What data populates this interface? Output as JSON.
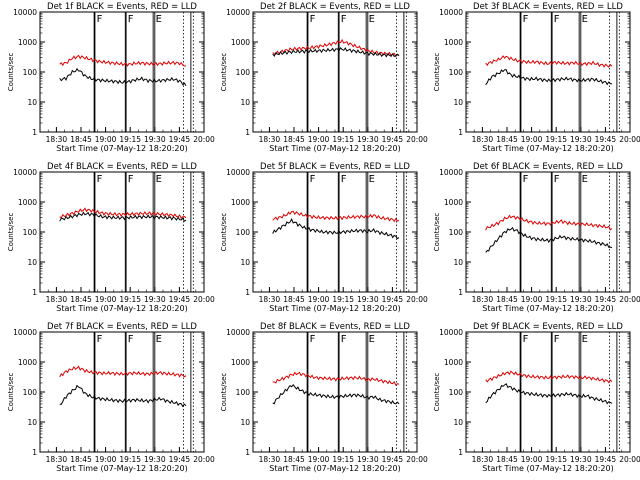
{
  "chart_data": [
    {
      "type": "line",
      "title": "Det 1f BLACK = Events, RED = LLD",
      "ylabel": "Counts/sec",
      "xlabel": "Start Time (07-May-12 18:20:20)",
      "x_ticks": [
        "18:30",
        "18:45",
        "19:00",
        "19:15",
        "19:30",
        "19:45",
        "20:00"
      ],
      "y_ticks": [
        "1",
        "10",
        "100",
        "1000",
        "10000"
      ],
      "yscale": "log",
      "ylim": [
        1,
        10000
      ],
      "x_range": [
        "18:20",
        "20:00"
      ],
      "series": [
        {
          "color": "#e00000",
          "values": [
            180,
            200,
            290,
            330,
            300,
            260,
            230,
            215,
            205,
            195,
            185,
            180,
            195,
            200,
            190,
            185,
            190,
            200,
            205,
            195,
            160
          ]
        },
        {
          "color": "#000000",
          "values": [
            55,
            62,
            100,
            120,
            75,
            60,
            55,
            52,
            50,
            48,
            45,
            48,
            55,
            60,
            52,
            50,
            52,
            55,
            58,
            50,
            35
          ]
        }
      ],
      "annotations": [
        "F",
        "F",
        "E"
      ]
    },
    {
      "type": "line",
      "title": "Det 2f BLACK = Events, RED = LLD",
      "ylabel": "Counts/sec",
      "xlabel": "Start Time (07-May-12 18:20:20)",
      "x_ticks": [
        "18:30",
        "18:45",
        "19:00",
        "19:15",
        "19:30",
        "19:45",
        "20:00"
      ],
      "y_ticks": [
        "1",
        "10",
        "100",
        "1000",
        "10000"
      ],
      "yscale": "log",
      "ylim": [
        1,
        10000
      ],
      "x_range": [
        "18:20",
        "20:00"
      ],
      "series": [
        {
          "color": "#e00000",
          "values": [
            400,
            450,
            520,
            580,
            600,
            620,
            650,
            700,
            760,
            840,
            950,
            1050,
            900,
            750,
            620,
            520,
            460,
            430,
            410,
            390,
            360
          ]
        },
        {
          "color": "#000000",
          "values": [
            380,
            410,
            440,
            470,
            480,
            490,
            500,
            510,
            520,
            540,
            560,
            580,
            540,
            500,
            460,
            420,
            400,
            380,
            370,
            360,
            350
          ]
        }
      ],
      "annotations": [
        "F",
        "F",
        "E"
      ]
    },
    {
      "type": "line",
      "title": "Det 3f BLACK = Events, RED = LLD",
      "ylabel": "Counts/sec",
      "xlabel": "Start Time (07-May-12 18:20:20)",
      "x_ticks": [
        "18:30",
        "18:45",
        "19:00",
        "19:15",
        "19:30",
        "19:45",
        "20:00"
      ],
      "y_ticks": [
        "1",
        "10",
        "100",
        "1000",
        "10000"
      ],
      "yscale": "log",
      "ylim": [
        1,
        10000
      ],
      "x_range": [
        "18:20",
        "20:00"
      ],
      "series": [
        {
          "color": "#e00000",
          "values": [
            180,
            220,
            260,
            330,
            280,
            240,
            225,
            210,
            220,
            200,
            190,
            210,
            200,
            195,
            205,
            185,
            190,
            200,
            175,
            165,
            155
          ]
        },
        {
          "color": "#000000",
          "values": [
            40,
            70,
            90,
            120,
            80,
            70,
            62,
            58,
            60,
            55,
            52,
            55,
            58,
            60,
            55,
            52,
            55,
            58,
            50,
            45,
            40
          ]
        }
      ],
      "annotations": [
        "F",
        "F",
        "E"
      ]
    },
    {
      "type": "line",
      "title": "Det 4f BLACK = Events, RED = LLD",
      "ylabel": "Counts/sec",
      "xlabel": "Start Time (07-May-12 18:20:20)",
      "x_ticks": [
        "18:30",
        "18:45",
        "19:00",
        "19:15",
        "19:30",
        "19:45",
        "20:00"
      ],
      "y_ticks": [
        "1",
        "10",
        "100",
        "1000",
        "10000"
      ],
      "yscale": "log",
      "ylim": [
        1,
        10000
      ],
      "x_range": [
        "18:20",
        "20:00"
      ],
      "series": [
        {
          "color": "#e00000",
          "values": [
            320,
            360,
            420,
            500,
            560,
            520,
            460,
            420,
            400,
            390,
            385,
            395,
            405,
            415,
            420,
            410,
            395,
            380,
            360,
            330,
            300
          ]
        },
        {
          "color": "#000000",
          "values": [
            260,
            290,
            330,
            380,
            410,
            390,
            350,
            320,
            310,
            300,
            298,
            305,
            315,
            320,
            325,
            318,
            310,
            300,
            290,
            270,
            250
          ]
        }
      ],
      "annotations": [
        "F",
        "F",
        "E"
      ]
    },
    {
      "type": "line",
      "title": "Det 5f BLACK = Events, RED = LLD",
      "ylabel": "Counts/sec",
      "xlabel": "Start Time (07-May-12 18:20:20)",
      "x_ticks": [
        "18:30",
        "18:45",
        "19:00",
        "19:15",
        "19:30",
        "19:45",
        "20:00"
      ],
      "y_ticks": [
        "1",
        "10",
        "100",
        "1000",
        "10000"
      ],
      "yscale": "log",
      "ylim": [
        1,
        10000
      ],
      "x_range": [
        "18:20",
        "20:00"
      ],
      "series": [
        {
          "color": "#e00000",
          "values": [
            270,
            300,
            360,
            470,
            420,
            360,
            330,
            310,
            300,
            295,
            290,
            300,
            310,
            320,
            330,
            320,
            360,
            300,
            280,
            260,
            240
          ]
        },
        {
          "color": "#000000",
          "values": [
            95,
            130,
            180,
            240,
            180,
            140,
            120,
            110,
            100,
            98,
            95,
            100,
            105,
            110,
            112,
            105,
            115,
            95,
            85,
            75,
            65
          ]
        }
      ],
      "annotations": [
        "F",
        "F",
        "E"
      ]
    },
    {
      "type": "line",
      "title": "Det 6f BLACK = Events, RED = LLD",
      "ylabel": "Counts/sec",
      "xlabel": "Start Time (07-May-12 18:20:20)",
      "x_ticks": [
        "18:30",
        "18:45",
        "19:00",
        "19:15",
        "19:30",
        "19:45",
        "20:00"
      ],
      "y_ticks": [
        "1",
        "10",
        "100",
        "1000",
        "10000"
      ],
      "yscale": "log",
      "ylim": [
        1,
        10000
      ],
      "x_range": [
        "18:20",
        "20:00"
      ],
      "series": [
        {
          "color": "#e00000",
          "values": [
            130,
            160,
            200,
            280,
            330,
            300,
            250,
            220,
            200,
            195,
            190,
            210,
            230,
            200,
            190,
            185,
            180,
            170,
            160,
            150,
            130
          ]
        },
        {
          "color": "#000000",
          "values": [
            20,
            35,
            60,
            100,
            130,
            110,
            80,
            65,
            58,
            55,
            52,
            60,
            70,
            62,
            58,
            55,
            52,
            48,
            42,
            38,
            30
          ]
        }
      ],
      "annotations": [
        "F",
        "F",
        "E"
      ]
    },
    {
      "type": "line",
      "title": "Det 7f BLACK = Events, RED = LLD",
      "ylabel": "Counts/sec",
      "xlabel": "Start Time (07-May-12 18:20:20)",
      "x_ticks": [
        "18:30",
        "18:45",
        "19:00",
        "19:15",
        "19:30",
        "19:45",
        "20:00"
      ],
      "y_ticks": [
        "1",
        "10",
        "100",
        "1000",
        "10000"
      ],
      "yscale": "log",
      "ylim": [
        1,
        10000
      ],
      "x_range": [
        "18:20",
        "20:00"
      ],
      "series": [
        {
          "color": "#e00000",
          "values": [
            330,
            480,
            600,
            650,
            520,
            460,
            440,
            420,
            430,
            410,
            400,
            420,
            430,
            410,
            400,
            420,
            440,
            410,
            390,
            370,
            350
          ]
        },
        {
          "color": "#000000",
          "values": [
            35,
            70,
            110,
            160,
            90,
            70,
            62,
            58,
            55,
            52,
            50,
            52,
            55,
            52,
            50,
            55,
            60,
            50,
            45,
            40,
            35
          ]
        }
      ],
      "annotations": [
        "F",
        "F",
        "E"
      ]
    },
    {
      "type": "line",
      "title": "Det 8f BLACK = Events, RED = LLD",
      "ylabel": "Counts/sec",
      "xlabel": "Start Time (07-May-12 18:20:20)",
      "x_ticks": [
        "18:30",
        "18:45",
        "19:00",
        "19:15",
        "19:30",
        "19:45",
        "20:00"
      ],
      "y_ticks": [
        "1",
        "10",
        "100",
        "1000",
        "10000"
      ],
      "yscale": "log",
      "ylim": [
        1,
        10000
      ],
      "x_range": [
        "18:20",
        "20:00"
      ],
      "series": [
        {
          "color": "#e00000",
          "values": [
            200,
            250,
            300,
            380,
            420,
            380,
            330,
            300,
            290,
            280,
            270,
            280,
            290,
            300,
            290,
            260,
            270,
            240,
            220,
            200,
            180
          ]
        },
        {
          "color": "#000000",
          "values": [
            40,
            70,
            110,
            170,
            130,
            100,
            85,
            80,
            75,
            70,
            68,
            72,
            76,
            80,
            75,
            65,
            70,
            55,
            50,
            45,
            40
          ]
        }
      ],
      "annotations": [
        "F",
        "F",
        "E"
      ]
    },
    {
      "type": "line",
      "title": "Det 9f BLACK = Events, RED = LLD",
      "ylabel": "Counts/sec",
      "xlabel": "Start Time (07-May-12 18:20:20)",
      "x_ticks": [
        "18:30",
        "18:45",
        "19:00",
        "19:15",
        "19:30",
        "19:45",
        "20:00"
      ],
      "y_ticks": [
        "1",
        "10",
        "100",
        "1000",
        "10000"
      ],
      "yscale": "log",
      "ylim": [
        1,
        10000
      ],
      "x_range": [
        "18:20",
        "20:00"
      ],
      "series": [
        {
          "color": "#e00000",
          "values": [
            230,
            280,
            340,
            420,
            450,
            400,
            360,
            330,
            320,
            310,
            300,
            310,
            320,
            330,
            320,
            300,
            310,
            280,
            260,
            240,
            220
          ]
        },
        {
          "color": "#000000",
          "values": [
            45,
            80,
            120,
            180,
            140,
            110,
            95,
            88,
            82,
            78,
            75,
            78,
            82,
            86,
            80,
            72,
            75,
            62,
            55,
            48,
            42
          ]
        }
      ],
      "annotations": [
        "F",
        "F",
        "E"
      ]
    }
  ]
}
